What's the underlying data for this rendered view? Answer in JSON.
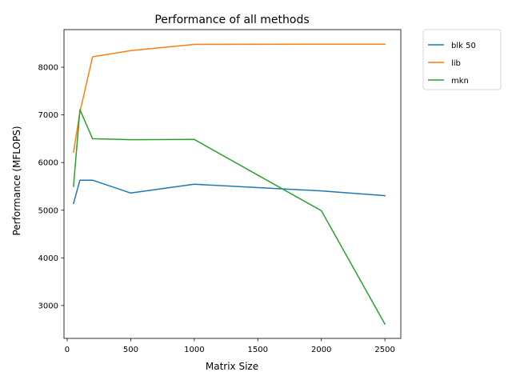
{
  "chart_data": {
    "type": "line",
    "title": "Performance of all methods",
    "xlabel": "Matrix Size",
    "ylabel": "Performance (MFLOPS)",
    "xlim": [
      -25,
      2625
    ],
    "ylim": [
      2310,
      8790
    ],
    "x_ticks": [
      0,
      500,
      1000,
      1500,
      2000,
      2500
    ],
    "y_ticks": [
      3000,
      4000,
      5000,
      6000,
      7000,
      8000
    ],
    "grid": false,
    "legend_position": "outside-top-right",
    "series": [
      {
        "name": "blk 50",
        "color": "#1f77b4",
        "x": [
          50,
          100,
          200,
          500,
          1000,
          2000,
          2500
        ],
        "y": [
          5140,
          5630,
          5630,
          5360,
          5545,
          5405,
          5305
        ]
      },
      {
        "name": "lib",
        "color": "#ff7f0e",
        "x": [
          50,
          100,
          200,
          500,
          1000,
          2000,
          2500
        ],
        "y": [
          6220,
          7060,
          8220,
          8350,
          8480,
          8485,
          8485
        ]
      },
      {
        "name": "mkn",
        "color": "#2ca02c",
        "x": [
          50,
          100,
          200,
          500,
          1000,
          2000,
          2500
        ],
        "y": [
          5500,
          7110,
          6500,
          6480,
          6485,
          4990,
          2610
        ]
      }
    ]
  }
}
